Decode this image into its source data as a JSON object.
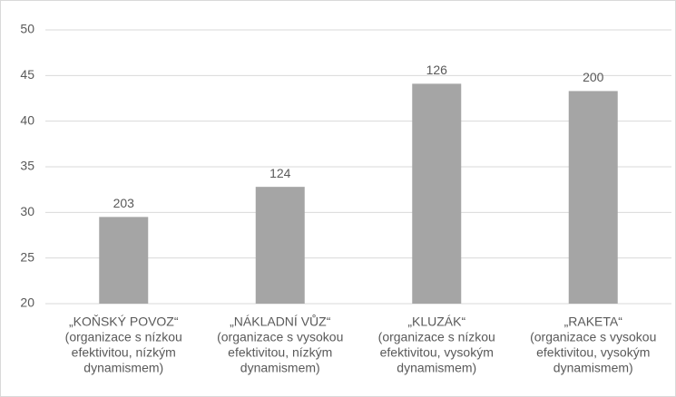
{
  "chart_data": {
    "type": "bar",
    "categories": [
      [
        "„KOŇSKÝ POVOZ“",
        "(organizace s nízkou",
        "efektivitou, nízkým",
        "dynamismem)"
      ],
      [
        "„NÁKLADNÍ VŮZ“",
        "(organizace s vysokou",
        "efektivitou, nízkým",
        "dynamismem)"
      ],
      [
        "„KLUZÁK“",
        "(organizace s nízkou",
        "efektivitou, vysokým",
        "dynamismem)"
      ],
      [
        "„RAKETA“",
        "(organizace s vysokou",
        "efektivitou, vysokým",
        "dynamismem)"
      ]
    ],
    "values": [
      29.5,
      32.8,
      44.1,
      43.3
    ],
    "bar_annotations": [
      203,
      124,
      126,
      200
    ],
    "color": "#a5a5a5",
    "ylim": [
      20,
      50
    ],
    "yticks": [
      20,
      25,
      30,
      35,
      40,
      45,
      50
    ],
    "grid": true
  }
}
